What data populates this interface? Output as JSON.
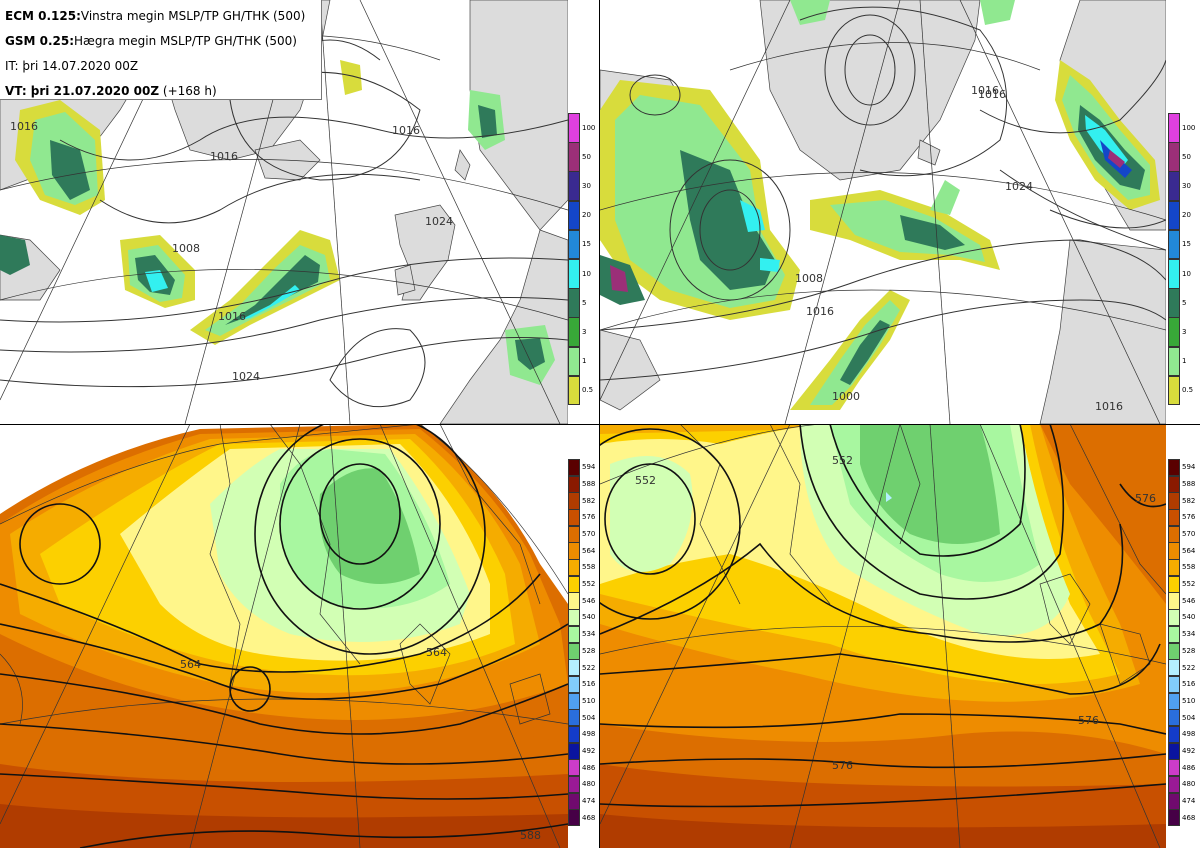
{
  "legend": {
    "line1_model": "ECM 0.125:",
    "line1_desc": "Vinstra megin MSLP/TP GH/THK (500)",
    "line2_model": "GSM 0.25:",
    "line2_desc": "Hægra megin MSLP/TP GH/THK (500)",
    "line3": "IT: þri 14.07.2020 00Z",
    "line4_bold": "VT: þri 21.07.2020 00Z",
    "line4_rest": " (+168 h)"
  },
  "precip_scale": {
    "levels": [
      "100",
      "50",
      "30",
      "20",
      "15",
      "10",
      "5",
      "3",
      "1",
      "0.5"
    ],
    "colors": [
      "#e040e0",
      "#9b2f78",
      "#3a2a90",
      "#1446c8",
      "#2288d8",
      "#33f0f0",
      "#2f7a5a",
      "#38a838",
      "#90e890",
      "#d8dc3c"
    ]
  },
  "thickness_scale": {
    "levels": [
      "594",
      "588",
      "582",
      "576",
      "570",
      "564",
      "558",
      "552",
      "546",
      "540",
      "534",
      "528",
      "522",
      "516",
      "510",
      "504",
      "498",
      "492",
      "486",
      "480",
      "474",
      "468"
    ],
    "colors": [
      "#5a0000",
      "#8a1a00",
      "#b03c00",
      "#c85000",
      "#dc6e00",
      "#ee8c00",
      "#f5ac00",
      "#fcd000",
      "#fff68a",
      "#d2ffb4",
      "#a8f7a0",
      "#6fd06f",
      "#b4f0ff",
      "#82cdfa",
      "#50a0f0",
      "#2a6edc",
      "#143cc8",
      "#0a14a0",
      "#cc3cc8",
      "#9a1a96",
      "#700a6e",
      "#460046"
    ]
  },
  "isobar_labels": {
    "tl": [
      "1016",
      "1024",
      "1016",
      "1008",
      "1016",
      "1016",
      "1024"
    ],
    "tr": [
      "1016",
      "1024",
      "1008",
      "1016",
      "1016",
      "1016",
      "1000"
    ]
  },
  "height_labels": {
    "bl": [
      "564",
      "564",
      "588"
    ],
    "br": [
      "552",
      "552",
      "576",
      "576",
      "576"
    ]
  }
}
